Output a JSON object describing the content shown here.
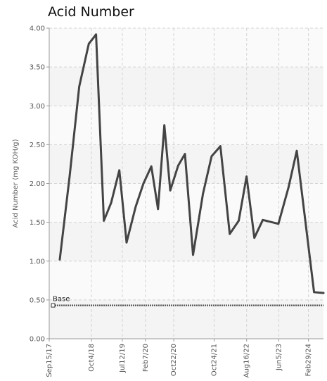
{
  "chart_data": {
    "type": "line",
    "title": "Acid Number",
    "ylabel": "Acid Number (mg KOH/g)",
    "ylim": [
      0,
      4
    ],
    "yticks": [
      "0.00",
      "0.50",
      "1.00",
      "1.50",
      "2.00",
      "2.50",
      "3.00",
      "3.50",
      "4.00"
    ],
    "xlim": [
      "2017-09-15",
      "2024-07-15"
    ],
    "xticks": [
      {
        "label": "Sep15/17",
        "date": "2017-09-15"
      },
      {
        "label": "Oct4/18",
        "date": "2018-10-04"
      },
      {
        "label": "Jul12/19",
        "date": "2019-07-12"
      },
      {
        "label": "Feb7/20",
        "date": "2020-02-07"
      },
      {
        "label": "Oct22/20",
        "date": "2020-10-22"
      },
      {
        "label": "Oct24/21",
        "date": "2021-10-24"
      },
      {
        "label": "Aug16/22",
        "date": "2022-08-16"
      },
      {
        "label": "Jun5/23",
        "date": "2023-06-05"
      },
      {
        "label": "Feb29/24",
        "date": "2024-02-29"
      }
    ],
    "grid": true,
    "series": [
      {
        "color": "#444444",
        "points": [
          {
            "x": "2017-12-20",
            "y": 1.02
          },
          {
            "x": "2018-03-20",
            "y": 2.1
          },
          {
            "x": "2018-06-15",
            "y": 3.25
          },
          {
            "x": "2018-09-10",
            "y": 3.8
          },
          {
            "x": "2018-10-20",
            "y": 3.87
          },
          {
            "x": "2018-11-15",
            "y": 3.92
          },
          {
            "x": "2019-01-25",
            "y": 1.52
          },
          {
            "x": "2019-04-01",
            "y": 1.75
          },
          {
            "x": "2019-06-15",
            "y": 2.17
          },
          {
            "x": "2019-08-20",
            "y": 1.24
          },
          {
            "x": "2019-11-10",
            "y": 1.7
          },
          {
            "x": "2020-01-20",
            "y": 2.0
          },
          {
            "x": "2020-04-01",
            "y": 2.22
          },
          {
            "x": "2020-06-01",
            "y": 1.67
          },
          {
            "x": "2020-07-28",
            "y": 2.75
          },
          {
            "x": "2020-09-20",
            "y": 1.91
          },
          {
            "x": "2020-12-01",
            "y": 2.23
          },
          {
            "x": "2021-02-01",
            "y": 2.38
          },
          {
            "x": "2021-04-15",
            "y": 1.08
          },
          {
            "x": "2021-07-15",
            "y": 1.87
          },
          {
            "x": "2021-10-01",
            "y": 2.35
          },
          {
            "x": "2021-12-20",
            "y": 2.48
          },
          {
            "x": "2022-03-15",
            "y": 1.35
          },
          {
            "x": "2022-06-05",
            "y": 1.52
          },
          {
            "x": "2022-08-15",
            "y": 2.09
          },
          {
            "x": "2022-10-25",
            "y": 1.3
          },
          {
            "x": "2023-01-10",
            "y": 1.53
          },
          {
            "x": "2023-06-01",
            "y": 1.48
          },
          {
            "x": "2023-09-01",
            "y": 1.95
          },
          {
            "x": "2023-11-15",
            "y": 2.42
          },
          {
            "x": "2024-04-20",
            "y": 0.6
          },
          {
            "x": "2024-07-15",
            "y": 0.59
          }
        ]
      }
    ],
    "baseline": {
      "label": "Base",
      "value": 0.43,
      "color": "#555555"
    },
    "band_colors": [
      "#f4f4f4",
      "#fafafa"
    ]
  }
}
